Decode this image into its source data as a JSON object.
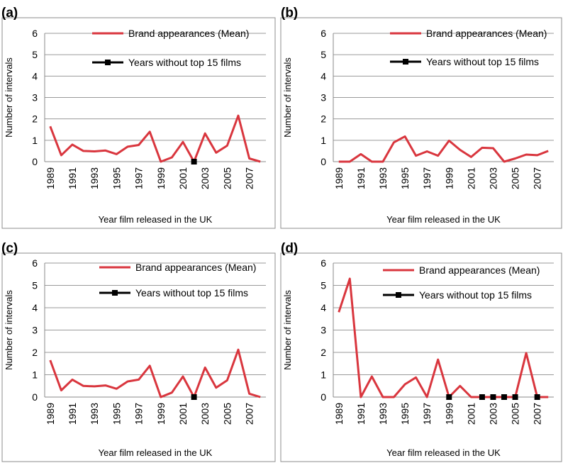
{
  "colors": {
    "brand": "#d9363e",
    "years_without": "#000000"
  },
  "chart_data": [
    {
      "panel": "(a)",
      "type": "line",
      "title": "",
      "xlabel": "Year film released in the UK",
      "ylabel": "Number of intervals",
      "ylim": [
        0,
        6
      ],
      "yticks": [
        "0",
        "1",
        "2",
        "3",
        "4",
        "5",
        "6"
      ],
      "xtick_labels": [
        "1989",
        "1991",
        "1993",
        "1995",
        "1997",
        "1999",
        "2001",
        "2003",
        "2005",
        "2007"
      ],
      "x": [
        1989,
        1990,
        1991,
        1992,
        1993,
        1994,
        1995,
        1996,
        1997,
        1998,
        1999,
        2000,
        2001,
        2002,
        2003,
        2004,
        2005,
        2006,
        2007,
        2008
      ],
      "series": [
        {
          "name": "Brand appearances (Mean)",
          "values": [
            1.65,
            0.3,
            0.8,
            0.5,
            0.48,
            0.52,
            0.35,
            0.7,
            0.78,
            1.4,
            0.0,
            0.2,
            0.92,
            0.0,
            1.32,
            0.42,
            0.75,
            2.15,
            0.15,
            0.0
          ]
        },
        {
          "name": "Years without top 15 films",
          "x": [
            2002
          ],
          "values": [
            0
          ]
        }
      ],
      "legend": [
        "Brand appearances (Mean)",
        "Years without top 15 films"
      ]
    },
    {
      "panel": "(b)",
      "type": "line",
      "title": "",
      "xlabel": "Year film released in the UK",
      "ylabel": "Number of intervals",
      "ylim": [
        0,
        6
      ],
      "yticks": [
        "0",
        "1",
        "2",
        "3",
        "4",
        "5",
        "6"
      ],
      "xtick_labels": [
        "1989",
        "1991",
        "1993",
        "1995",
        "1997",
        "1999",
        "2001",
        "2003",
        "2005",
        "2007"
      ],
      "x": [
        1989,
        1990,
        1991,
        1992,
        1993,
        1994,
        1995,
        1996,
        1997,
        1998,
        1999,
        2000,
        2001,
        2002,
        2003,
        2004,
        2005,
        2006,
        2007,
        2008
      ],
      "series": [
        {
          "name": "Brand appearances (Mean)",
          "values": [
            0.0,
            0.0,
            0.35,
            0.0,
            0.0,
            0.9,
            1.18,
            0.28,
            0.48,
            0.28,
            0.98,
            0.55,
            0.22,
            0.65,
            0.63,
            0.0,
            0.15,
            0.33,
            0.3,
            0.5
          ]
        },
        {
          "name": "Years without top 15 films",
          "x": [],
          "values": []
        }
      ],
      "legend": [
        "Brand appearances (Mean)",
        "Years without top 15 films"
      ]
    },
    {
      "panel": "(c)",
      "type": "line",
      "title": "",
      "xlabel": "Year film released in the UK",
      "ylabel": "Number of intervals",
      "ylim": [
        0,
        6
      ],
      "yticks": [
        "0",
        "1",
        "2",
        "3",
        "4",
        "5",
        "6"
      ],
      "xtick_labels": [
        "1989",
        "1991",
        "1993",
        "1995",
        "1997",
        "1999",
        "2001",
        "2003",
        "2005",
        "2007"
      ],
      "x": [
        1989,
        1990,
        1991,
        1992,
        1993,
        1994,
        1995,
        1996,
        1997,
        1998,
        1999,
        2000,
        2001,
        2002,
        2003,
        2004,
        2005,
        2006,
        2007,
        2008
      ],
      "series": [
        {
          "name": "Brand appearances (Mean)",
          "values": [
            1.65,
            0.3,
            0.78,
            0.5,
            0.48,
            0.52,
            0.37,
            0.7,
            0.78,
            1.4,
            0.0,
            0.2,
            0.92,
            0.0,
            1.32,
            0.42,
            0.75,
            2.12,
            0.15,
            0.0
          ]
        },
        {
          "name": "Years without top 15 films",
          "x": [
            2002
          ],
          "values": [
            0
          ]
        }
      ],
      "legend": [
        "Brand appearances (Mean)",
        "Years without top 15 films"
      ]
    },
    {
      "panel": "(d)",
      "type": "line",
      "title": "",
      "xlabel": "Year film released in the UK",
      "ylabel": "Number of intervals",
      "ylim": [
        0,
        6
      ],
      "yticks": [
        "0",
        "1",
        "2",
        "3",
        "4",
        "5",
        "6"
      ],
      "xtick_labels": [
        "1989",
        "1991",
        "1993",
        "1995",
        "1997",
        "1999",
        "2001",
        "2003",
        "2005",
        "2007"
      ],
      "x": [
        1989,
        1990,
        1991,
        1992,
        1993,
        1994,
        1995,
        1996,
        1997,
        1998,
        1999,
        2000,
        2001,
        2002,
        2003,
        2004,
        2005,
        2006,
        2007,
        2008
      ],
      "series": [
        {
          "name": "Brand appearances (Mean)",
          "values": [
            3.8,
            5.3,
            0.0,
            0.92,
            0.0,
            0.0,
            0.57,
            0.88,
            0.0,
            1.68,
            0.0,
            0.5,
            0.0,
            0.0,
            0.0,
            0.0,
            0.0,
            1.97,
            0.0,
            0.0
          ]
        },
        {
          "name": "Years without top 15 films",
          "x": [
            1999,
            2002,
            2003,
            2004,
            2005,
            2007
          ],
          "values": [
            0,
            0,
            0,
            0,
            0,
            0
          ]
        }
      ],
      "legend": [
        "Brand appearances (Mean)",
        "Years without top 15 films"
      ]
    }
  ]
}
